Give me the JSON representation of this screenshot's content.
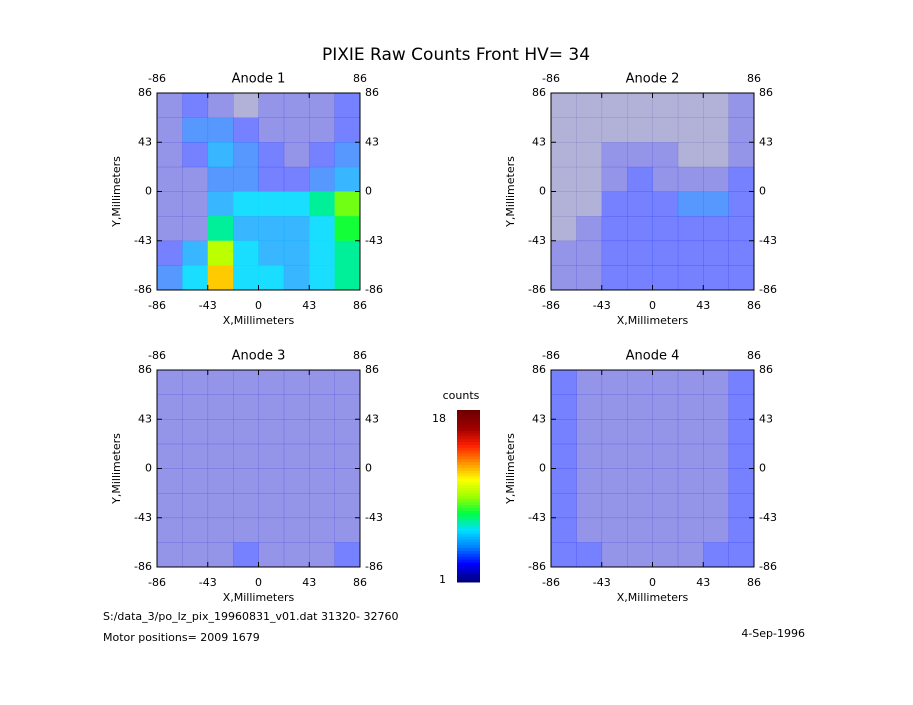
{
  "title": "PIXIE Raw Counts Front HV= 34",
  "footer": {
    "file": "S:/data_3/po_lz_pix_19960831_v01.dat   31320- 32760",
    "motor": "Motor positions= 2009 1679",
    "date": "4-Sep-1996"
  },
  "colorbar": {
    "label": "counts",
    "min": 1,
    "max": 18,
    "colormap": [
      "#00007f",
      "#0000ff",
      "#0080ff",
      "#00e0ff",
      "#00ff40",
      "#a0ff00",
      "#ffff00",
      "#ff9000",
      "#ff2000",
      "#a00000",
      "#700000"
    ]
  },
  "chart_data": [
    {
      "type": "heatmap",
      "title": "Anode 1",
      "x_label": "X,Millimeters",
      "y_label": "Y,Millimeters",
      "xlim": [
        -86,
        86
      ],
      "ylim": [
        -86,
        86
      ],
      "xticks": [
        -86,
        -43,
        0,
        43,
        86
      ],
      "yticks": [
        -86,
        -43,
        0,
        43,
        86
      ],
      "z": [
        [
          2,
          3,
          2,
          1,
          2,
          2,
          2,
          3
        ],
        [
          2,
          4,
          4,
          3,
          2,
          2,
          2,
          3
        ],
        [
          2,
          3,
          5,
          4,
          3,
          2,
          3,
          4
        ],
        [
          2,
          2,
          4,
          4,
          3,
          3,
          4,
          5
        ],
        [
          2,
          2,
          5,
          6,
          6,
          6,
          7,
          9
        ],
        [
          2,
          2,
          7,
          5,
          5,
          5,
          6,
          8
        ],
        [
          3,
          5,
          10,
          6,
          5,
          5,
          6,
          7
        ],
        [
          4,
          6,
          12,
          6,
          6,
          5,
          6,
          7
        ]
      ]
    },
    {
      "type": "heatmap",
      "title": "Anode 2",
      "x_label": "X,Millimeters",
      "y_label": "Y,Millimeters",
      "xlim": [
        -86,
        86
      ],
      "ylim": [
        -86,
        86
      ],
      "xticks": [
        -86,
        -43,
        0,
        43,
        86
      ],
      "yticks": [
        -86,
        -43,
        0,
        43,
        86
      ],
      "z": [
        [
          1,
          1,
          1,
          1,
          1,
          1,
          1,
          2
        ],
        [
          1,
          1,
          1,
          1,
          1,
          1,
          1,
          2
        ],
        [
          1,
          1,
          2,
          2,
          2,
          1,
          1,
          2
        ],
        [
          1,
          1,
          2,
          3,
          2,
          2,
          2,
          3
        ],
        [
          1,
          1,
          3,
          3,
          3,
          4,
          4,
          3
        ],
        [
          1,
          2,
          3,
          3,
          3,
          3,
          3,
          3
        ],
        [
          2,
          2,
          3,
          3,
          3,
          3,
          3,
          3
        ],
        [
          2,
          2,
          3,
          3,
          3,
          3,
          3,
          3
        ]
      ]
    },
    {
      "type": "heatmap",
      "title": "Anode 3",
      "x_label": "X,Millimeters",
      "y_label": "Y,Millimeters",
      "xlim": [
        -86,
        86
      ],
      "ylim": [
        -86,
        86
      ],
      "xticks": [
        -86,
        -43,
        0,
        43,
        86
      ],
      "yticks": [
        -86,
        -43,
        0,
        43,
        86
      ],
      "z": [
        [
          2,
          2,
          2,
          2,
          2,
          2,
          2,
          2
        ],
        [
          2,
          2,
          2,
          2,
          2,
          2,
          2,
          2
        ],
        [
          2,
          2,
          2,
          2,
          2,
          2,
          2,
          2
        ],
        [
          2,
          2,
          2,
          2,
          2,
          2,
          2,
          2
        ],
        [
          2,
          2,
          2,
          2,
          2,
          2,
          2,
          2
        ],
        [
          2,
          2,
          2,
          2,
          2,
          2,
          2,
          2
        ],
        [
          2,
          2,
          2,
          2,
          2,
          2,
          2,
          2
        ],
        [
          2,
          2,
          2,
          3,
          2,
          2,
          2,
          3
        ]
      ]
    },
    {
      "type": "heatmap",
      "title": "Anode 4",
      "x_label": "X,Millimeters",
      "y_label": "Y,Millimeters",
      "xlim": [
        -86,
        86
      ],
      "ylim": [
        -86,
        86
      ],
      "xticks": [
        -86,
        -43,
        0,
        43,
        86
      ],
      "yticks": [
        -86,
        -43,
        0,
        43,
        86
      ],
      "z": [
        [
          3,
          2,
          2,
          2,
          2,
          2,
          2,
          3
        ],
        [
          3,
          2,
          2,
          2,
          2,
          2,
          2,
          3
        ],
        [
          3,
          2,
          2,
          2,
          2,
          2,
          2,
          3
        ],
        [
          3,
          2,
          2,
          2,
          2,
          2,
          2,
          3
        ],
        [
          3,
          2,
          2,
          2,
          2,
          2,
          2,
          3
        ],
        [
          3,
          2,
          2,
          2,
          2,
          2,
          2,
          3
        ],
        [
          3,
          2,
          2,
          2,
          2,
          2,
          2,
          3
        ],
        [
          3,
          3,
          2,
          2,
          2,
          2,
          3,
          3
        ]
      ]
    }
  ]
}
